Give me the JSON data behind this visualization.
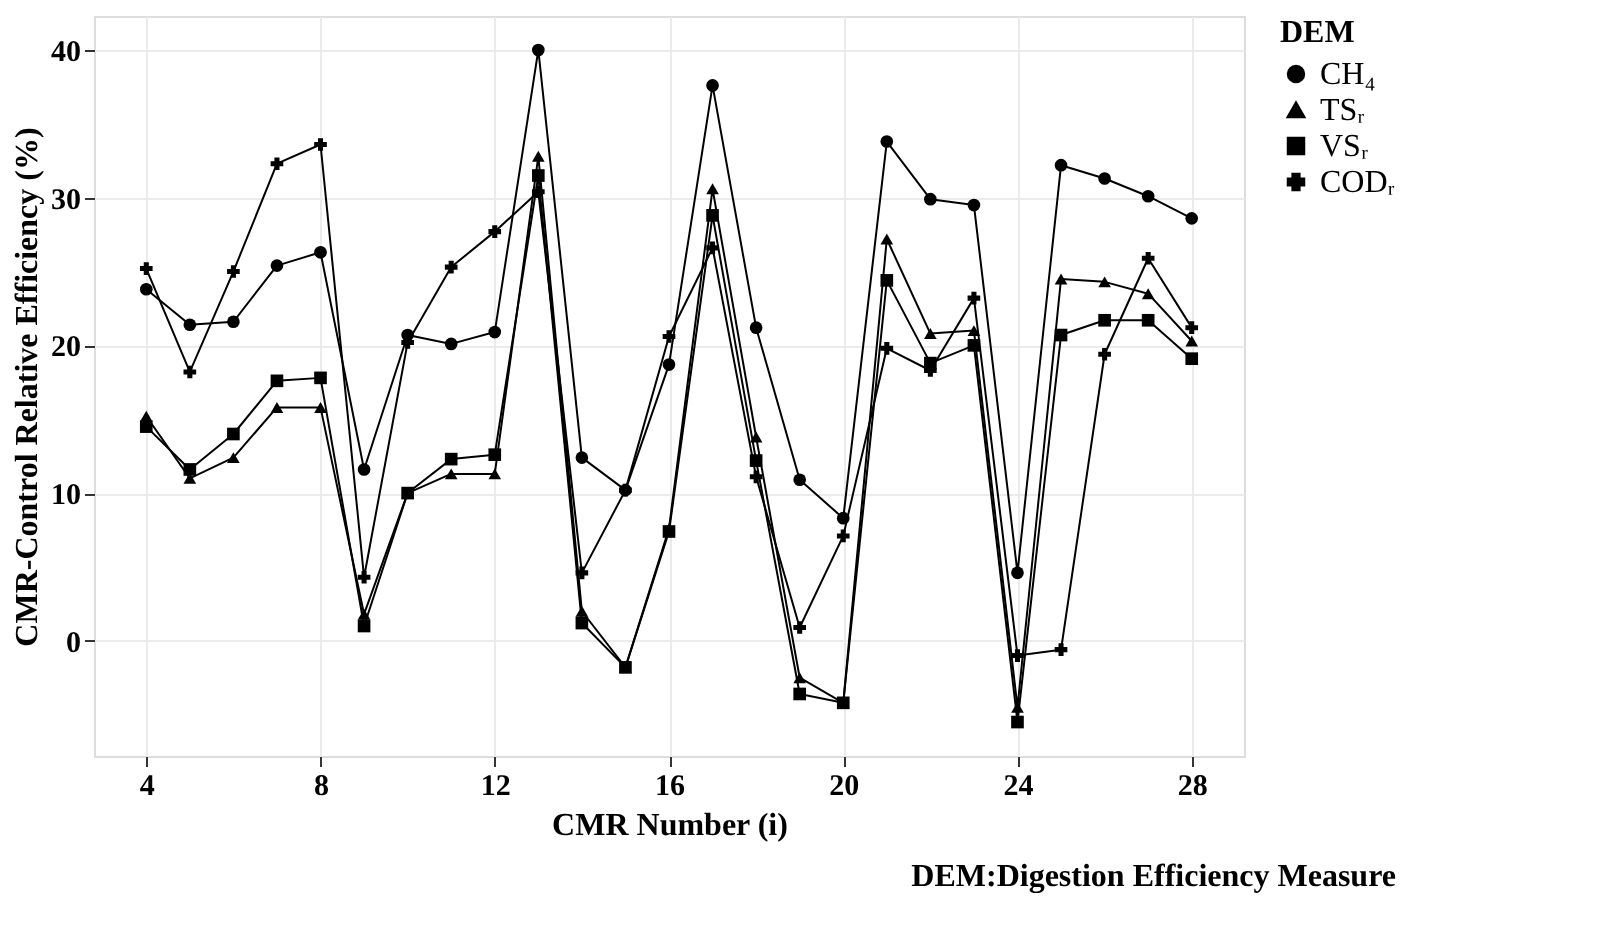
{
  "chart_data": {
    "type": "line",
    "xlabel": "CMR Number (i)",
    "ylabel": "CMR-Control Relative Efficiency (%)",
    "legend_title": "DEM",
    "legend": "right",
    "grid": true,
    "line_style": "solid",
    "x": [
      4,
      5,
      6,
      7,
      8,
      9,
      10,
      11,
      12,
      13,
      14,
      15,
      16,
      17,
      18,
      19,
      20,
      21,
      22,
      23,
      24,
      25,
      26,
      27,
      28
    ],
    "xlim": [
      2.8,
      29.2
    ],
    "xticks": [
      4,
      8,
      12,
      16,
      20,
      24,
      28
    ],
    "ylim": [
      -7.8,
      42.3
    ],
    "yticks": [
      0,
      10,
      20,
      30,
      40
    ],
    "series": [
      {
        "name": "CH₄",
        "color": "#000000",
        "marker": "circle",
        "values": [
          23.8,
          21.4,
          21.6,
          25.4,
          26.3,
          11.6,
          20.7,
          20.1,
          20.9,
          40,
          12.4,
          10.2,
          18.7,
          37.6,
          21.2,
          10.9,
          8.3,
          33.8,
          29.9,
          29.5,
          4.6,
          32.2,
          31.3,
          30.1,
          28.6
        ]
      },
      {
        "name": "TSᵣ",
        "color": "#000000",
        "marker": "triangle",
        "values": [
          15.2,
          11.0,
          12.4,
          15.8,
          15.8,
          1.8,
          10.0,
          11.3,
          11.3,
          32.8,
          2.0,
          -1.8,
          7.6,
          30.6,
          13.8,
          -2.5,
          -4.2,
          27.2,
          20.8,
          21.0,
          -4.5,
          24.5,
          24.3,
          23.5,
          20.3
        ]
      },
      {
        "name": "VSᵣ",
        "color": "#000000",
        "marker": "square",
        "values": [
          14.5,
          11.6,
          14.0,
          17.6,
          17.8,
          1.0,
          10.0,
          12.3,
          12.6,
          31.5,
          1.2,
          -1.8,
          7.4,
          28.8,
          12.2,
          -3.6,
          -4.2,
          24.4,
          18.8,
          20.0,
          -5.5,
          20.7,
          21.7,
          21.7,
          19.1
        ]
      },
      {
        "name": "CODᵣ",
        "color": "#000000",
        "marker": "cross",
        "values": [
          25.2,
          18.2,
          25.0,
          32.3,
          33.6,
          4.3,
          20.2,
          25.3,
          27.7,
          30.4,
          4.6,
          10.2,
          20.6,
          26.6,
          11.1,
          0.9,
          7.1,
          19.8,
          18.3,
          23.2,
          -1.0,
          -0.6,
          19.4,
          25.9,
          21.2
        ]
      }
    ],
    "annotations": [
      "DEM:Digestion Efficiency Measure"
    ]
  }
}
